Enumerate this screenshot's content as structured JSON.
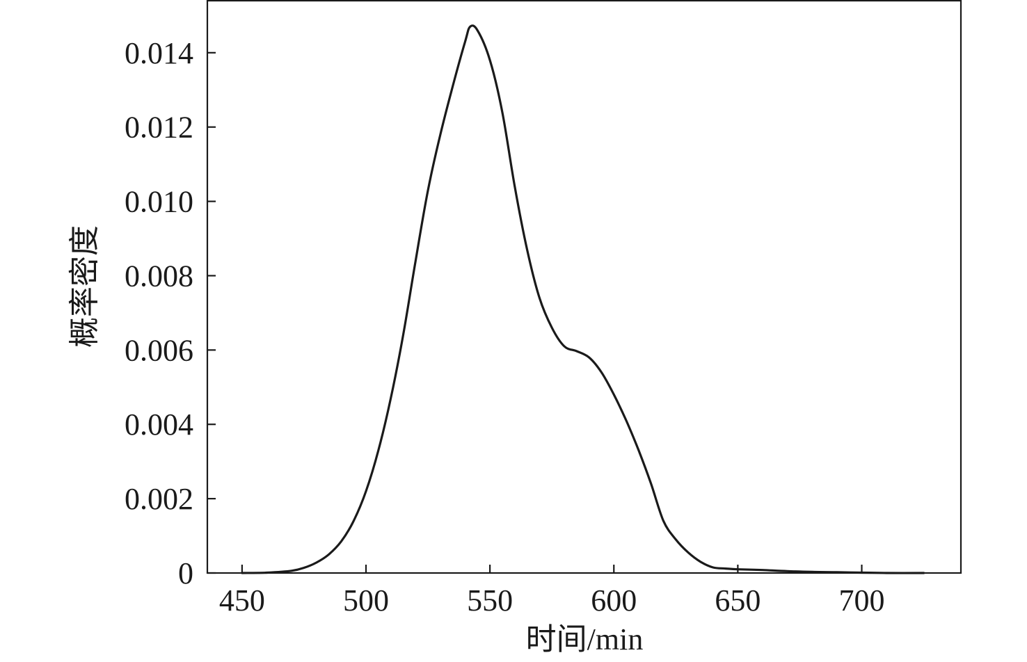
{
  "chart_data": {
    "type": "line",
    "title": "",
    "xlabel": "时间/min",
    "ylabel": "概率密度",
    "xlim": [
      436,
      740
    ],
    "ylim": [
      0,
      0.0154
    ],
    "xticks": [
      450,
      500,
      550,
      600,
      650,
      700
    ],
    "xtick_labels": [
      "450",
      "500",
      "550",
      "600",
      "650",
      "700"
    ],
    "yticks": [
      0,
      0.002,
      0.004,
      0.006,
      0.008,
      0.01,
      0.012,
      0.014
    ],
    "ytick_labels": [
      "0",
      "0.002",
      "0.004",
      "0.006",
      "0.008",
      "0.010",
      "0.012",
      "0.014"
    ],
    "grid": false,
    "legend": "none",
    "line_color": "#1a1a1a",
    "series": [
      {
        "x": [
          450,
          460,
          470,
          475,
          480,
          485,
          490,
          495,
          500,
          505,
          510,
          515,
          520,
          525,
          530,
          535,
          540,
          542,
          545,
          550,
          555,
          560,
          565,
          570,
          575,
          580,
          585,
          590,
          595,
          600,
          605,
          610,
          615,
          620,
          625,
          630,
          635,
          640,
          645,
          650,
          660,
          670,
          680,
          690,
          700,
          710,
          725
        ],
        "y": [
          0.0,
          1e-05,
          6e-05,
          0.00014,
          0.00028,
          0.0005,
          0.00085,
          0.0014,
          0.0022,
          0.0033,
          0.0047,
          0.0064,
          0.0084,
          0.0103,
          0.0118,
          0.0131,
          0.0143,
          0.0147,
          0.0146,
          0.0138,
          0.0124,
          0.0104,
          0.0087,
          0.0074,
          0.0066,
          0.0061,
          0.00597,
          0.0058,
          0.0054,
          0.0048,
          0.0041,
          0.0033,
          0.0024,
          0.0014,
          0.0009,
          0.00055,
          0.0003,
          0.00015,
          0.00012,
          0.0001,
          8e-05,
          5e-05,
          3e-05,
          2e-05,
          1e-05,
          0.0,
          0.0
        ]
      }
    ]
  }
}
